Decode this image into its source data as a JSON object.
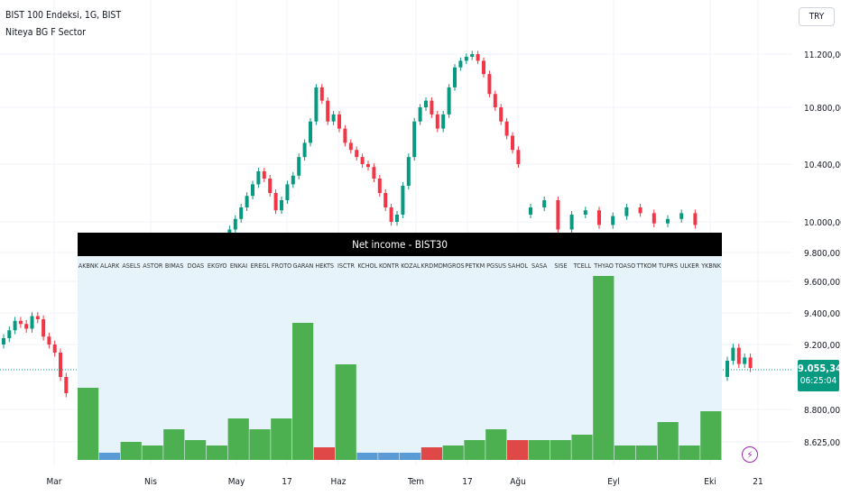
{
  "header": {
    "symbol_title": "BIST 100 Endeksi, 1G, BIST",
    "indicator_name": "Niteya BG F Sector"
  },
  "currency_label": "TRY",
  "price_scale": {
    "labels": [
      "11.200,00",
      "10.800,00",
      "10.400,00",
      "10.000,00",
      "9.800,00",
      "9.600,00",
      "9.400,00",
      "9.200,00",
      "8.800,00",
      "8.625,00"
    ]
  },
  "time_axis": {
    "labels": [
      "Mar",
      "Nis",
      "May",
      "17",
      "Haz",
      "Tem",
      "17",
      "Ağu",
      "Eyl",
      "Eki",
      "21"
    ]
  },
  "last_price": {
    "value": "9.055,34",
    "countdown": "06:25:04",
    "color": "#089981"
  },
  "colors": {
    "up_candle": "#089981",
    "down_candle": "#f23645",
    "bar_green": "#4caf50",
    "bar_red": "#e04848",
    "bar_blue": "#5b9bd5",
    "panel_bg": "#e6f3fb",
    "panel_header": "#000000"
  },
  "icons": [
    "lightning-icon"
  ],
  "chart_data": [
    {
      "type": "candlestick",
      "series_name": "BIST 100 Endeksi",
      "price_range": [
        8500,
        11350
      ],
      "last_price": 9055.34,
      "closes_visible_left": [
        9240,
        9290,
        9350,
        9330,
        9300,
        9380,
        9360,
        9250,
        9200,
        9150,
        9000,
        8900
      ],
      "closes_visible_upper": [
        9880,
        9950,
        10020,
        10100,
        10180,
        10260,
        10350,
        10300,
        10200,
        10080,
        10150,
        10260,
        10320,
        10450,
        10550,
        10700,
        10950,
        10850,
        10700,
        10750,
        10650,
        10550,
        10500,
        10450,
        10400,
        10380,
        10300,
        10200,
        10100,
        10000,
        10050,
        10250,
        10450,
        10700,
        10800,
        10850,
        10750,
        10650,
        10750,
        10950,
        11100,
        11150,
        11180,
        11200,
        11150,
        11050,
        10900,
        10800,
        10700,
        10600,
        10500,
        10400
      ],
      "closes_visible_lower_upper": [
        10100,
        10150,
        9950,
        10050,
        10080,
        9980,
        10040,
        10100,
        10060,
        9990,
        10020,
        10060,
        9980
      ],
      "closes_visible_right": [
        9100,
        9180,
        9080,
        9120,
        9055
      ]
    },
    {
      "type": "bar",
      "title": "Net income - BIST30",
      "categories": [
        "AKBNK",
        "ALARK",
        "ASELS",
        "ASTOR",
        "BIMAS",
        "DOAS",
        "EKGYO",
        "ENKAI",
        "EREGL",
        "FROTO",
        "GARAN",
        "HEKTS",
        "ISCTR",
        "KCHOL",
        "KONTR",
        "KOZAL",
        "KRDMD",
        "MGROS",
        "PETKM",
        "PGSUS",
        "SAHOL",
        "SASA",
        "SISE",
        "TCELL",
        "THYAO",
        "TOASO",
        "TTKOM",
        "TUPRS",
        "ULKER",
        "YKBNK"
      ],
      "values": [
        40,
        4,
        10,
        8,
        17,
        11,
        8,
        23,
        17,
        23,
        76,
        7,
        53,
        4,
        4,
        4,
        7,
        8,
        11,
        17,
        11,
        11,
        11,
        14,
        102,
        8,
        8,
        21,
        8,
        27
      ],
      "colors": [
        "green",
        "blue",
        "green",
        "green",
        "green",
        "green",
        "green",
        "green",
        "green",
        "green",
        "green",
        "red",
        "green",
        "blue",
        "blue",
        "blue",
        "red",
        "green",
        "green",
        "green",
        "red",
        "green",
        "green",
        "green",
        "green",
        "green",
        "green",
        "green",
        "green",
        "green"
      ]
    }
  ]
}
